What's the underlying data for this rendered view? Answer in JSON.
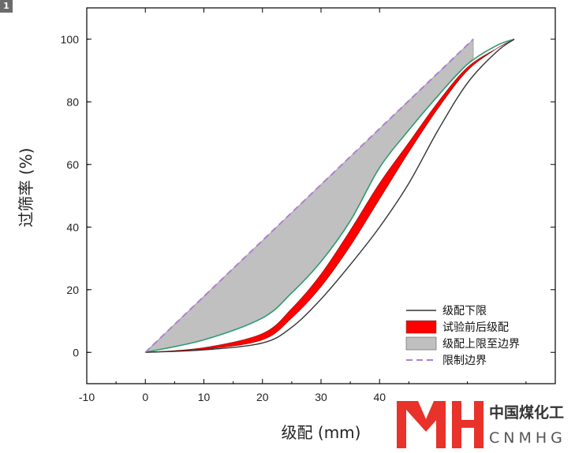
{
  "panel_label": "1",
  "chart_data": {
    "type": "line",
    "title": "",
    "xlabel": "级配 (mm)",
    "ylabel": "过筛率 (%)",
    "xlim": [
      -10,
      70
    ],
    "ylim": [
      -10,
      110
    ],
    "x_ticks": [
      -10,
      0,
      10,
      20,
      30,
      40
    ],
    "y_ticks": [
      0,
      20,
      40,
      60,
      80,
      100
    ],
    "legend_position": "bottom-right",
    "grid": false,
    "series": [
      {
        "name": "级配下限",
        "kind": "line",
        "color": "#333333",
        "x": [
          0,
          10,
          20,
          25,
          30,
          35,
          40,
          45,
          50,
          55,
          60,
          63
        ],
        "y": [
          0,
          0.8,
          3,
          8,
          17,
          28,
          40,
          54,
          71,
          86,
          96,
          100
        ]
      },
      {
        "name": "试验前后级配",
        "kind": "band",
        "color": "#ff0000",
        "x": [
          0,
          10,
          20,
          25,
          30,
          35,
          40,
          45,
          50,
          55,
          60,
          63
        ],
        "y_lower": [
          0,
          1,
          4,
          11,
          21,
          34,
          49,
          64,
          78,
          90,
          97,
          100
        ],
        "y_upper": [
          0,
          1.5,
          6,
          14,
          25,
          39,
          54,
          67,
          80,
          91,
          97,
          100
        ]
      },
      {
        "name": "级配上限至边界",
        "kind": "band",
        "color": "#c0c0c0",
        "x": [
          0,
          10,
          20,
          25,
          30,
          35,
          40,
          45,
          50,
          55,
          56
        ],
        "y_lower": [
          0,
          4,
          11,
          19,
          29,
          42,
          59,
          71,
          82,
          92,
          94
        ],
        "y_upper": [
          0,
          17.9,
          35.7,
          44.6,
          53.6,
          62.5,
          71.4,
          80.4,
          89.3,
          98.2,
          100
        ]
      },
      {
        "name": "限制边界",
        "kind": "dashed-line",
        "color": "#b07fd1",
        "x": [
          0,
          56
        ],
        "y": [
          0,
          100
        ]
      }
    ],
    "upper_limit_line": {
      "color": "#2e9a6e",
      "x": [
        0,
        10,
        20,
        25,
        30,
        35,
        40,
        45,
        50,
        55,
        60,
        63
      ],
      "y": [
        0,
        4,
        11,
        19,
        29,
        42,
        59,
        71,
        82,
        92,
        98,
        100
      ]
    }
  },
  "logo": {
    "mark_text": "MH",
    "cn_text": "中国煤化工",
    "en_text": "CNMHG",
    "mark_color": "#e8322a"
  }
}
